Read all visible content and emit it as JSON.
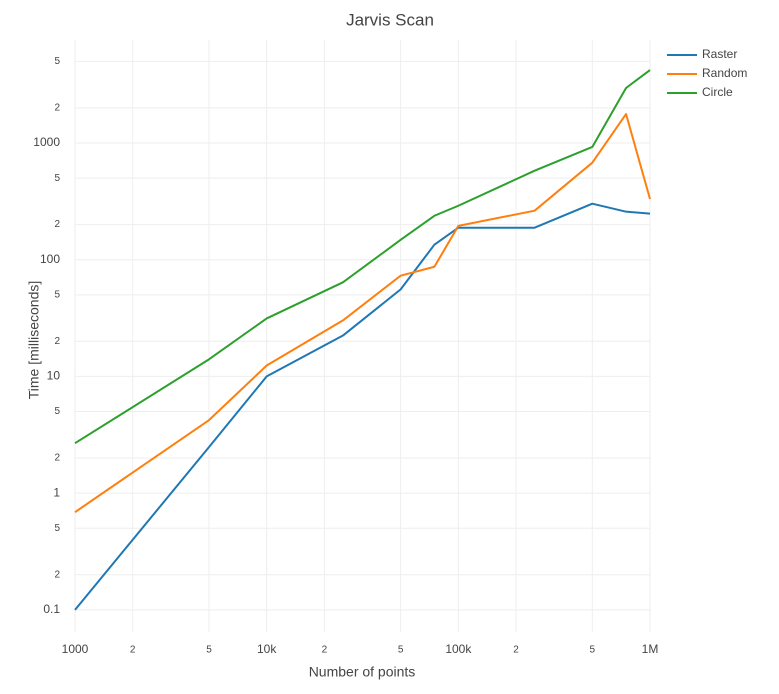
{
  "chart_data": {
    "type": "line",
    "title": "Jarvis Scan",
    "x_label": "Number of points",
    "y_label": "Time [milliseconds]",
    "x": [
      1000,
      5000,
      10000,
      25000,
      50000,
      75000,
      100000,
      250000,
      500000,
      750000,
      1000000
    ],
    "series": [
      {
        "name": "Raster",
        "color": "#1f77b4",
        "values": [
          0.1,
          2.48,
          10,
          22.4,
          55.7,
          134.5,
          188,
          188,
          302,
          258,
          248
        ]
      },
      {
        "name": "Random",
        "color": "#ff7f0e",
        "values": [
          0.687,
          4.22,
          12.4,
          30.2,
          73,
          87,
          195,
          263,
          678,
          1771,
          331
        ]
      },
      {
        "name": "Circle",
        "color": "#2ca02c",
        "values": [
          2.68,
          14,
          31.4,
          64,
          148,
          238,
          290,
          579,
          925,
          2960,
          4220
        ]
      }
    ],
    "xlog": true,
    "ylog": true,
    "xlim": [
      1000,
      1000000
    ],
    "ylim": [
      0.0646,
      7630
    ],
    "xticks": [
      1000,
      {
        "value": 2000,
        "label": "2"
      },
      {
        "value": 5000,
        "label": "5"
      },
      {
        "value": 10000,
        "label": "10k"
      },
      {
        "value": 20000,
        "label": "2"
      },
      {
        "value": 50000,
        "label": "5"
      },
      {
        "value": 100000,
        "label": "100k"
      },
      {
        "value": 200000,
        "label": "2"
      },
      {
        "value": 500000,
        "label": "5"
      },
      {
        "value": 1000000,
        "label": "1M"
      }
    ],
    "yticks": [
      0.1,
      {
        "value": 0.2,
        "label": "2"
      },
      {
        "value": 0.5,
        "label": "5"
      },
      1,
      {
        "value": 2,
        "label": "2"
      },
      {
        "value": 5,
        "label": "5"
      },
      10,
      {
        "value": 20,
        "label": "2"
      },
      {
        "value": 50,
        "label": "5"
      },
      100,
      {
        "value": 200,
        "label": "2"
      },
      {
        "value": 500,
        "label": "5"
      },
      1000,
      {
        "value": 2000,
        "label": "2"
      },
      {
        "value": 5000,
        "label": "5"
      }
    ],
    "grid": true,
    "legend": "top-right"
  }
}
